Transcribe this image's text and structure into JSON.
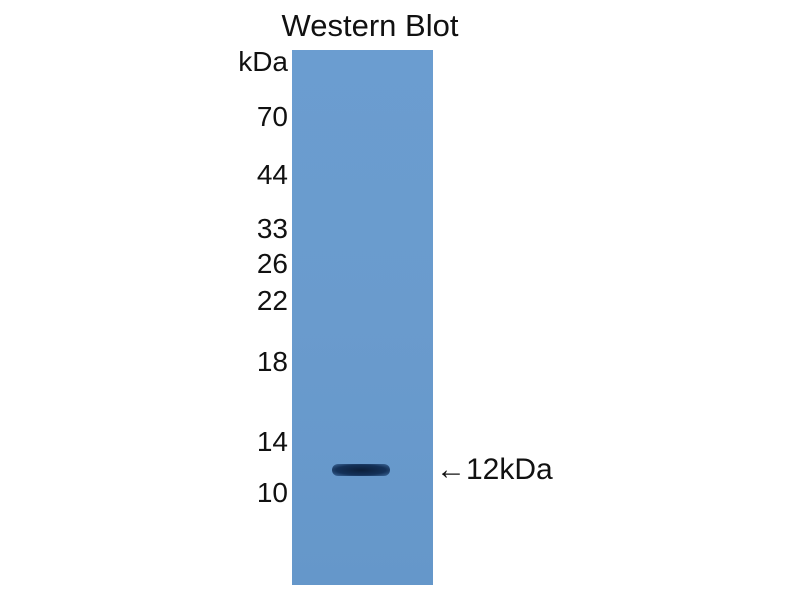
{
  "title": "Western Blot",
  "unit_label": "kDa",
  "markers": [
    "70",
    "44",
    "33",
    "26",
    "22",
    "18",
    "14",
    "10"
  ],
  "band_annotation": "←12kDa",
  "colors": {
    "membrane": "#6a9bcd",
    "band": "#10264a"
  }
}
